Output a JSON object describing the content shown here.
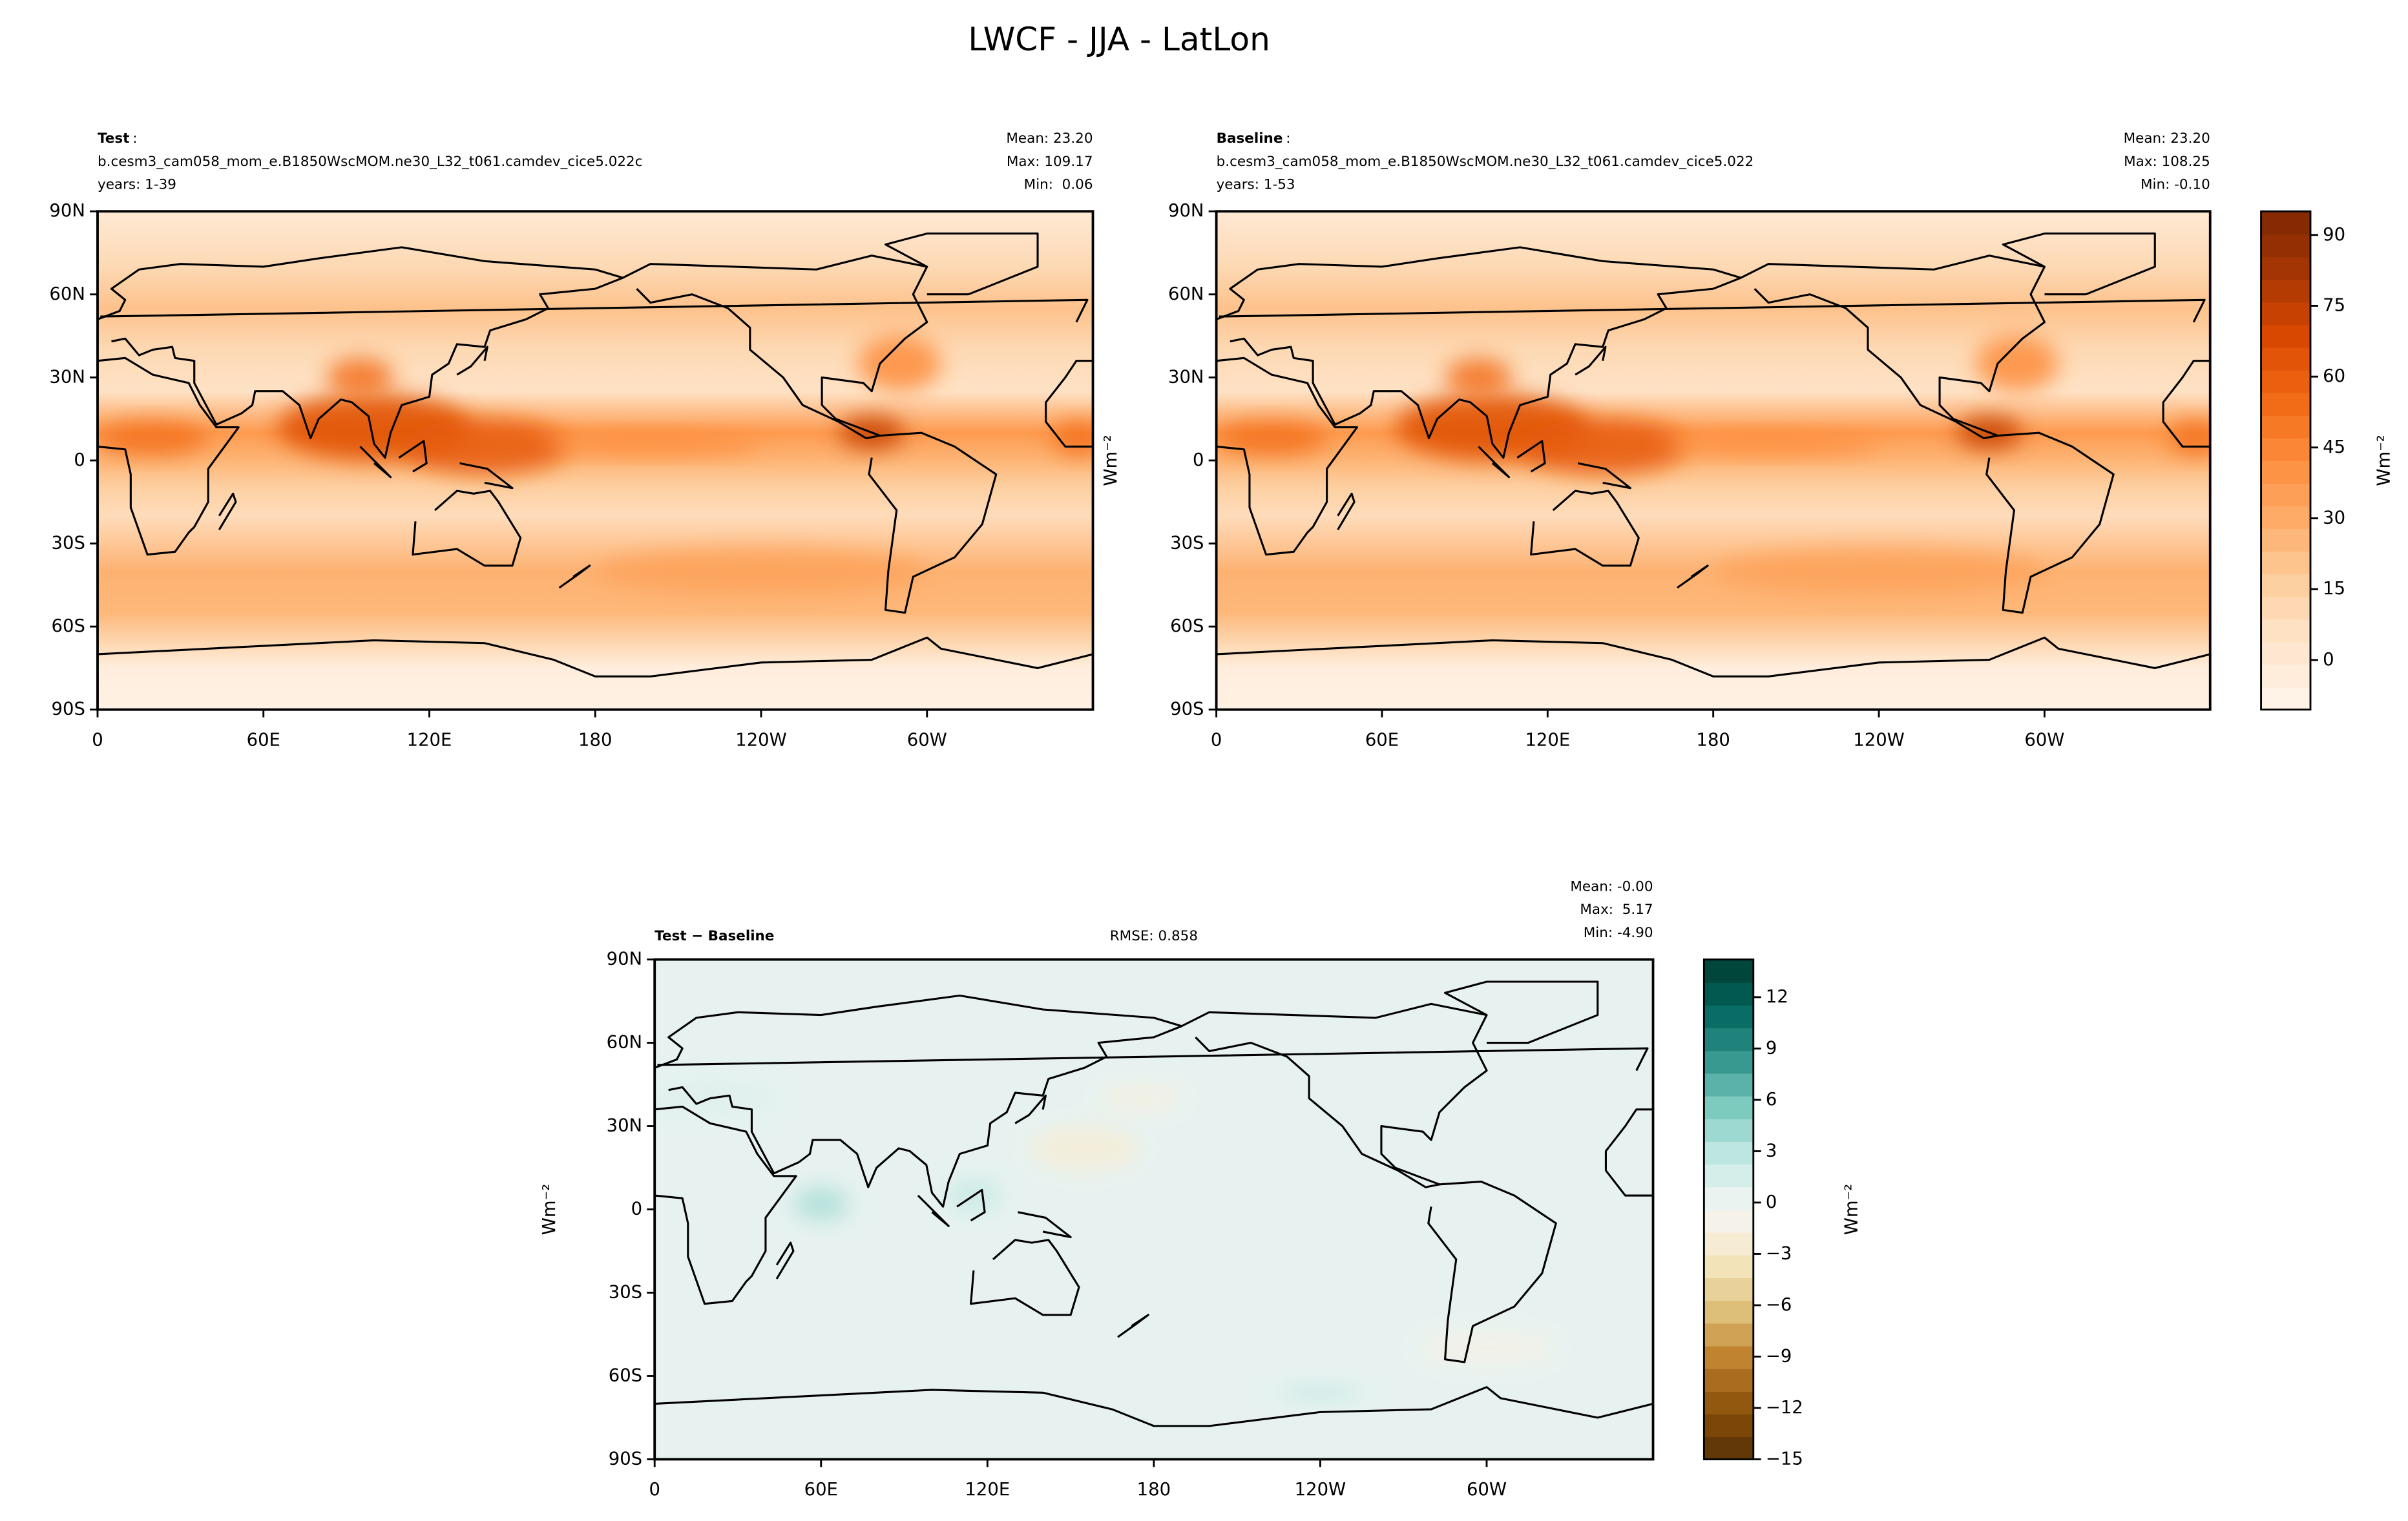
{
  "title": "LWCF - JJA - LatLon",
  "chart_data": [
    {
      "type": "map",
      "name": "Test",
      "name_suffix": ":",
      "case": "b.cesm3_cam058_mom_e.B1850WscMOM.ne30_L32_t061.camdev_cice5.022c",
      "years": "years: 1-39",
      "stats": [
        "Mean: 23.20",
        "Max: 109.17",
        "Min:  0.06"
      ],
      "colormap": [
        "#fff5eb",
        "#fee6ce",
        "#fdd0a2",
        "#fdae6b",
        "#fd8d3c",
        "#f16913",
        "#d94801",
        "#a63603",
        "#7f2704"
      ],
      "xlim": [
        0,
        360
      ],
      "ylim": [
        -90,
        90
      ],
      "xticks": [
        0,
        {
          "value": 60,
          "label": "60E"
        },
        {
          "value": 120,
          "label": "120E"
        },
        180,
        {
          "value": 240,
          "label": "120W"
        },
        {
          "value": 300,
          "label": "60W"
        }
      ],
      "yticks": [
        {
          "value": -90,
          "label": "90S"
        },
        {
          "value": -60,
          "label": "60S"
        },
        {
          "value": -30,
          "label": "30S"
        },
        0,
        {
          "value": 30,
          "label": "30N"
        },
        {
          "value": 60,
          "label": "60N"
        },
        {
          "value": 90,
          "label": "90N"
        }
      ]
    },
    {
      "type": "map",
      "name": "Baseline",
      "name_suffix": ":",
      "case": "b.cesm3_cam058_mom_e.B1850WscMOM.ne30_L32_t061.camdev_cice5.022",
      "years": "years: 1-53",
      "stats": [
        "Mean: 23.20",
        "Max: 108.25",
        "Min: -0.10"
      ],
      "ylabel": "Wm⁻²",
      "colormap": [
        "#fff5eb",
        "#fee6ce",
        "#fdd0a2",
        "#fdae6b",
        "#fd8d3c",
        "#f16913",
        "#d94801",
        "#a63603",
        "#7f2704"
      ],
      "xlim": [
        0,
        360
      ],
      "ylim": [
        -90,
        90
      ],
      "xticks": [
        0,
        {
          "value": 60,
          "label": "60E"
        },
        {
          "value": 120,
          "label": "120E"
        },
        180,
        {
          "value": 240,
          "label": "120W"
        },
        {
          "value": 300,
          "label": "60W"
        }
      ],
      "yticks": [
        {
          "value": -90,
          "label": "90S"
        },
        {
          "value": -60,
          "label": "60S"
        },
        {
          "value": -30,
          "label": "30S"
        },
        0,
        {
          "value": 30,
          "label": "30N"
        },
        {
          "value": 60,
          "label": "60N"
        },
        {
          "value": 90,
          "label": "90N"
        }
      ],
      "colorbar": {
        "label": "Wm⁻²",
        "ylim": [
          -10.5,
          95
        ],
        "yticks": [
          0,
          15,
          30,
          45,
          60,
          75,
          90
        ]
      }
    },
    {
      "type": "map",
      "name": "Test − Baseline",
      "rmse": "RMSE: 0.858",
      "stats": [
        "Mean: -0.00",
        "Max:  5.17",
        "Min: -4.90"
      ],
      "ylabel": "Wm⁻²",
      "colormap": [
        "#543005",
        "#8c510a",
        "#bf812d",
        "#dfc27d",
        "#f6e8c3",
        "#f5f5f5",
        "#c7eae5",
        "#80cdc1",
        "#35978f",
        "#01665e",
        "#003c30"
      ],
      "xlim": [
        0,
        360
      ],
      "ylim": [
        -90,
        90
      ],
      "xticks": [
        0,
        {
          "value": 60,
          "label": "60E"
        },
        {
          "value": 120,
          "label": "120E"
        },
        180,
        {
          "value": 240,
          "label": "120W"
        },
        {
          "value": 300,
          "label": "60W"
        }
      ],
      "yticks": [
        {
          "value": -90,
          "label": "90S"
        },
        {
          "value": -60,
          "label": "60S"
        },
        {
          "value": -30,
          "label": "30S"
        },
        0,
        {
          "value": 30,
          "label": "30N"
        },
        {
          "value": 60,
          "label": "60N"
        },
        {
          "value": 90,
          "label": "90N"
        }
      ],
      "colorbar": {
        "label": "Wm⁻²",
        "ylim": [
          -15,
          14.2
        ],
        "yticks": [
          {
            "value": -15,
            "label": "−15"
          },
          {
            "value": -12,
            "label": "−12"
          },
          {
            "value": -9,
            "label": "−9"
          },
          {
            "value": -6,
            "label": "−6"
          },
          {
            "value": -3,
            "label": "−3"
          },
          0,
          3,
          6,
          9,
          12
        ]
      }
    }
  ]
}
